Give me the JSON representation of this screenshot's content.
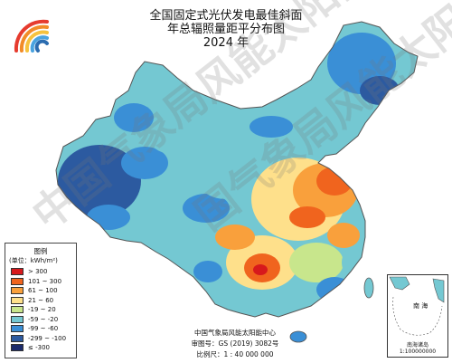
{
  "title": {
    "line1": "全国固定式光伏发电最佳斜面",
    "line2": "年总辐照量距平分布图",
    "line3": "2024 年"
  },
  "legend": {
    "title": "图例",
    "unit": "(单位：kWh/m²)",
    "items": [
      {
        "label": "> 300",
        "color": "#d7191c"
      },
      {
        "label": "101 ~ 300",
        "color": "#f0641e"
      },
      {
        "label": "61 ~ 100",
        "color": "#f9a03c"
      },
      {
        "label": "21 ~ 60",
        "color": "#fee08b"
      },
      {
        "label": "-19 ~ 20",
        "color": "#c8e68c"
      },
      {
        "label": "-59 ~ -20",
        "color": "#74c8d2"
      },
      {
        "label": "-99 ~ -60",
        "color": "#3a8fd6"
      },
      {
        "label": "-299 ~ -100",
        "color": "#2c5aa0"
      },
      {
        "label": "≤ -300",
        "color": "#1a2a6c"
      }
    ]
  },
  "footer": {
    "org": "中国气象局风能太阳能中心",
    "approval": "审图号：GS (2019) 3082号",
    "scale": "比例尺：1 : 40 000 000"
  },
  "inset": {
    "sea_label": "南 海",
    "title": "南海诸岛",
    "scale": "1:100000000"
  },
  "watermark": {
    "text1": "中国气象局风能太阳能",
    "text2": "国气象局风能太阳能"
  },
  "colors": {
    "outside": "#ffffff",
    "land_base": "#74c8d2",
    "sea": "#ffffff",
    "logo": [
      "#e63b2e",
      "#f28c28",
      "#f6c23e",
      "#4aa3df",
      "#2b6cb0"
    ]
  }
}
